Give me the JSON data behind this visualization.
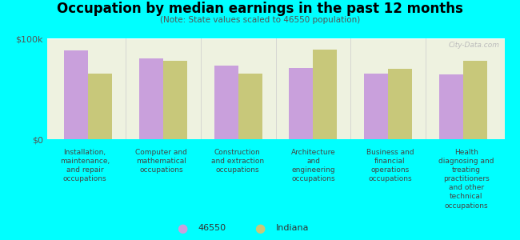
{
  "title": "Occupation by median earnings in the past 12 months",
  "subtitle": "(Note: State values scaled to 46550 population)",
  "background_color": "#00FFFF",
  "plot_bg_color": "#eef2e0",
  "categories": [
    "Installation,\nmaintenance,\nand repair\noccupations",
    "Computer and\nmathematical\noccupations",
    "Construction\nand extraction\noccupations",
    "Architecture\nand\nengineering\noccupations",
    "Business and\nfinancial\noperations\noccupations",
    "Health\ndiagnosing and\ntreating\npractitioners\nand other\ntechnical\noccupations"
  ],
  "values_46550": [
    88000,
    80000,
    73000,
    71000,
    65000,
    64000
  ],
  "values_indiana": [
    65000,
    78000,
    65000,
    89000,
    70000,
    78000
  ],
  "color_46550": "#c9a0dc",
  "color_indiana": "#c8c87a",
  "ylim": [
    0,
    100000
  ],
  "ytick_labels": [
    "$0",
    "$100k"
  ],
  "legend_46550": "46550",
  "legend_indiana": "Indiana",
  "bar_width": 0.32,
  "watermark": "City-Data.com"
}
